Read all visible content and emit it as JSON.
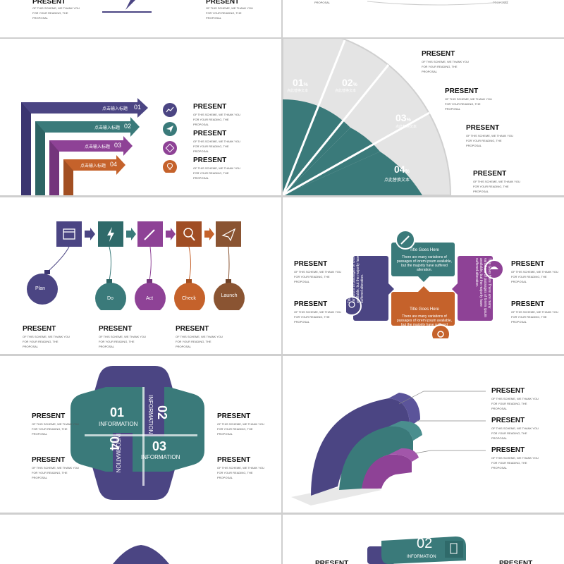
{
  "colors": {
    "purple_dark": "#4b4583",
    "teal": "#3a7a7a",
    "purple": "#8e4296",
    "orange": "#c5622b",
    "brown": "#8a5432",
    "bg": "#ffffff",
    "gray": "#e2e2e2"
  },
  "common": {
    "present": "PRESENT",
    "desc": "OF THIS SCHEME, WE THANK YOU FOR YOUR READING, THE PROPOSAL"
  },
  "slide_top_left": {
    "title": "PRESENT",
    "desc": "OF THIS SCHEME, WE THANK YOU FOR YOUR READING, THE PROPOSAL"
  },
  "slide_top_right": {
    "desc": "PROPOSAL"
  },
  "slide_arrows": {
    "labels": [
      "点击输入标题",
      "点击输入标题",
      "点击输入标题",
      "点击输入标题"
    ],
    "nums": [
      "01",
      "02",
      "03",
      "04"
    ],
    "icons": [
      "chart-icon",
      "send-icon",
      "cube-icon",
      "bulb-icon"
    ]
  },
  "slide_fan": {
    "segments": [
      {
        "num": "01",
        "sub": "点此替换文本"
      },
      {
        "num": "02",
        "sub": "点此替换文本"
      },
      {
        "num": "03",
        "sub": "点此替换文本"
      },
      {
        "num": "04",
        "sub": "点此替换文本"
      }
    ],
    "pct": "%"
  },
  "slide_pdca": {
    "balls": [
      "Plan",
      "Do",
      "Act",
      "Check",
      "Launch"
    ]
  },
  "slide_callouts": {
    "title": "Title Goes Here",
    "body": "There are many variations of passages of lorem ipsum available, but the majority have suffered alteration."
  },
  "slide_cross": {
    "items": [
      {
        "num": "01",
        "label": "INFORMATION"
      },
      {
        "num": "02",
        "label": "INFORMATION"
      },
      {
        "num": "03",
        "label": "INFORMATION"
      },
      {
        "num": "04",
        "label": "INFORMATION"
      }
    ]
  },
  "slide_bottom_right": {
    "num": "02",
    "label": "INFORMATION"
  }
}
